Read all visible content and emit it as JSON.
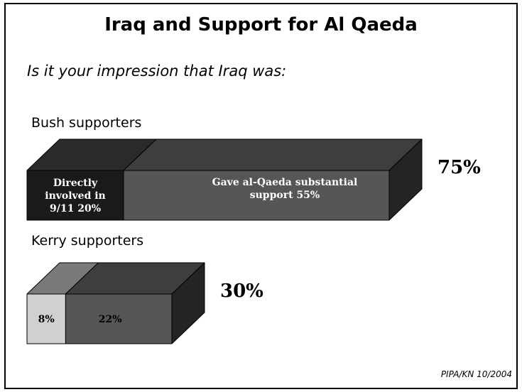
{
  "title": "Iraq and Support for Al Qaeda",
  "question": "Is it your impression that Iraq was:",
  "source": "PIPA/KN 10/2004",
  "colors": {
    "directly_front": "#1a1a1a",
    "directly_top": "#2a2a2a",
    "gave_front": "#565656",
    "gave_top": "#3e3e3e",
    "side": "#242424",
    "light_front": "#d0d0d0",
    "light_top": "#7a7a7a"
  },
  "chart_data": {
    "type": "bar",
    "orientation": "horizontal",
    "stacked": true,
    "categories": [
      "Bush supporters",
      "Kerry supporters"
    ],
    "series": [
      {
        "name": "Directly involved in 9/11",
        "values": [
          20,
          8
        ]
      },
      {
        "name": "Gave al-Qaeda substantial support",
        "values": [
          55,
          22
        ]
      }
    ],
    "totals": [
      75,
      30
    ],
    "segment_labels": [
      [
        "Directly involved in 9/11 20%",
        "Gave al-Qaeda substantial support 55%"
      ],
      [
        "8%",
        "22%"
      ]
    ],
    "total_labels": [
      "75%",
      "30%"
    ],
    "xlim": [
      0,
      75
    ]
  }
}
